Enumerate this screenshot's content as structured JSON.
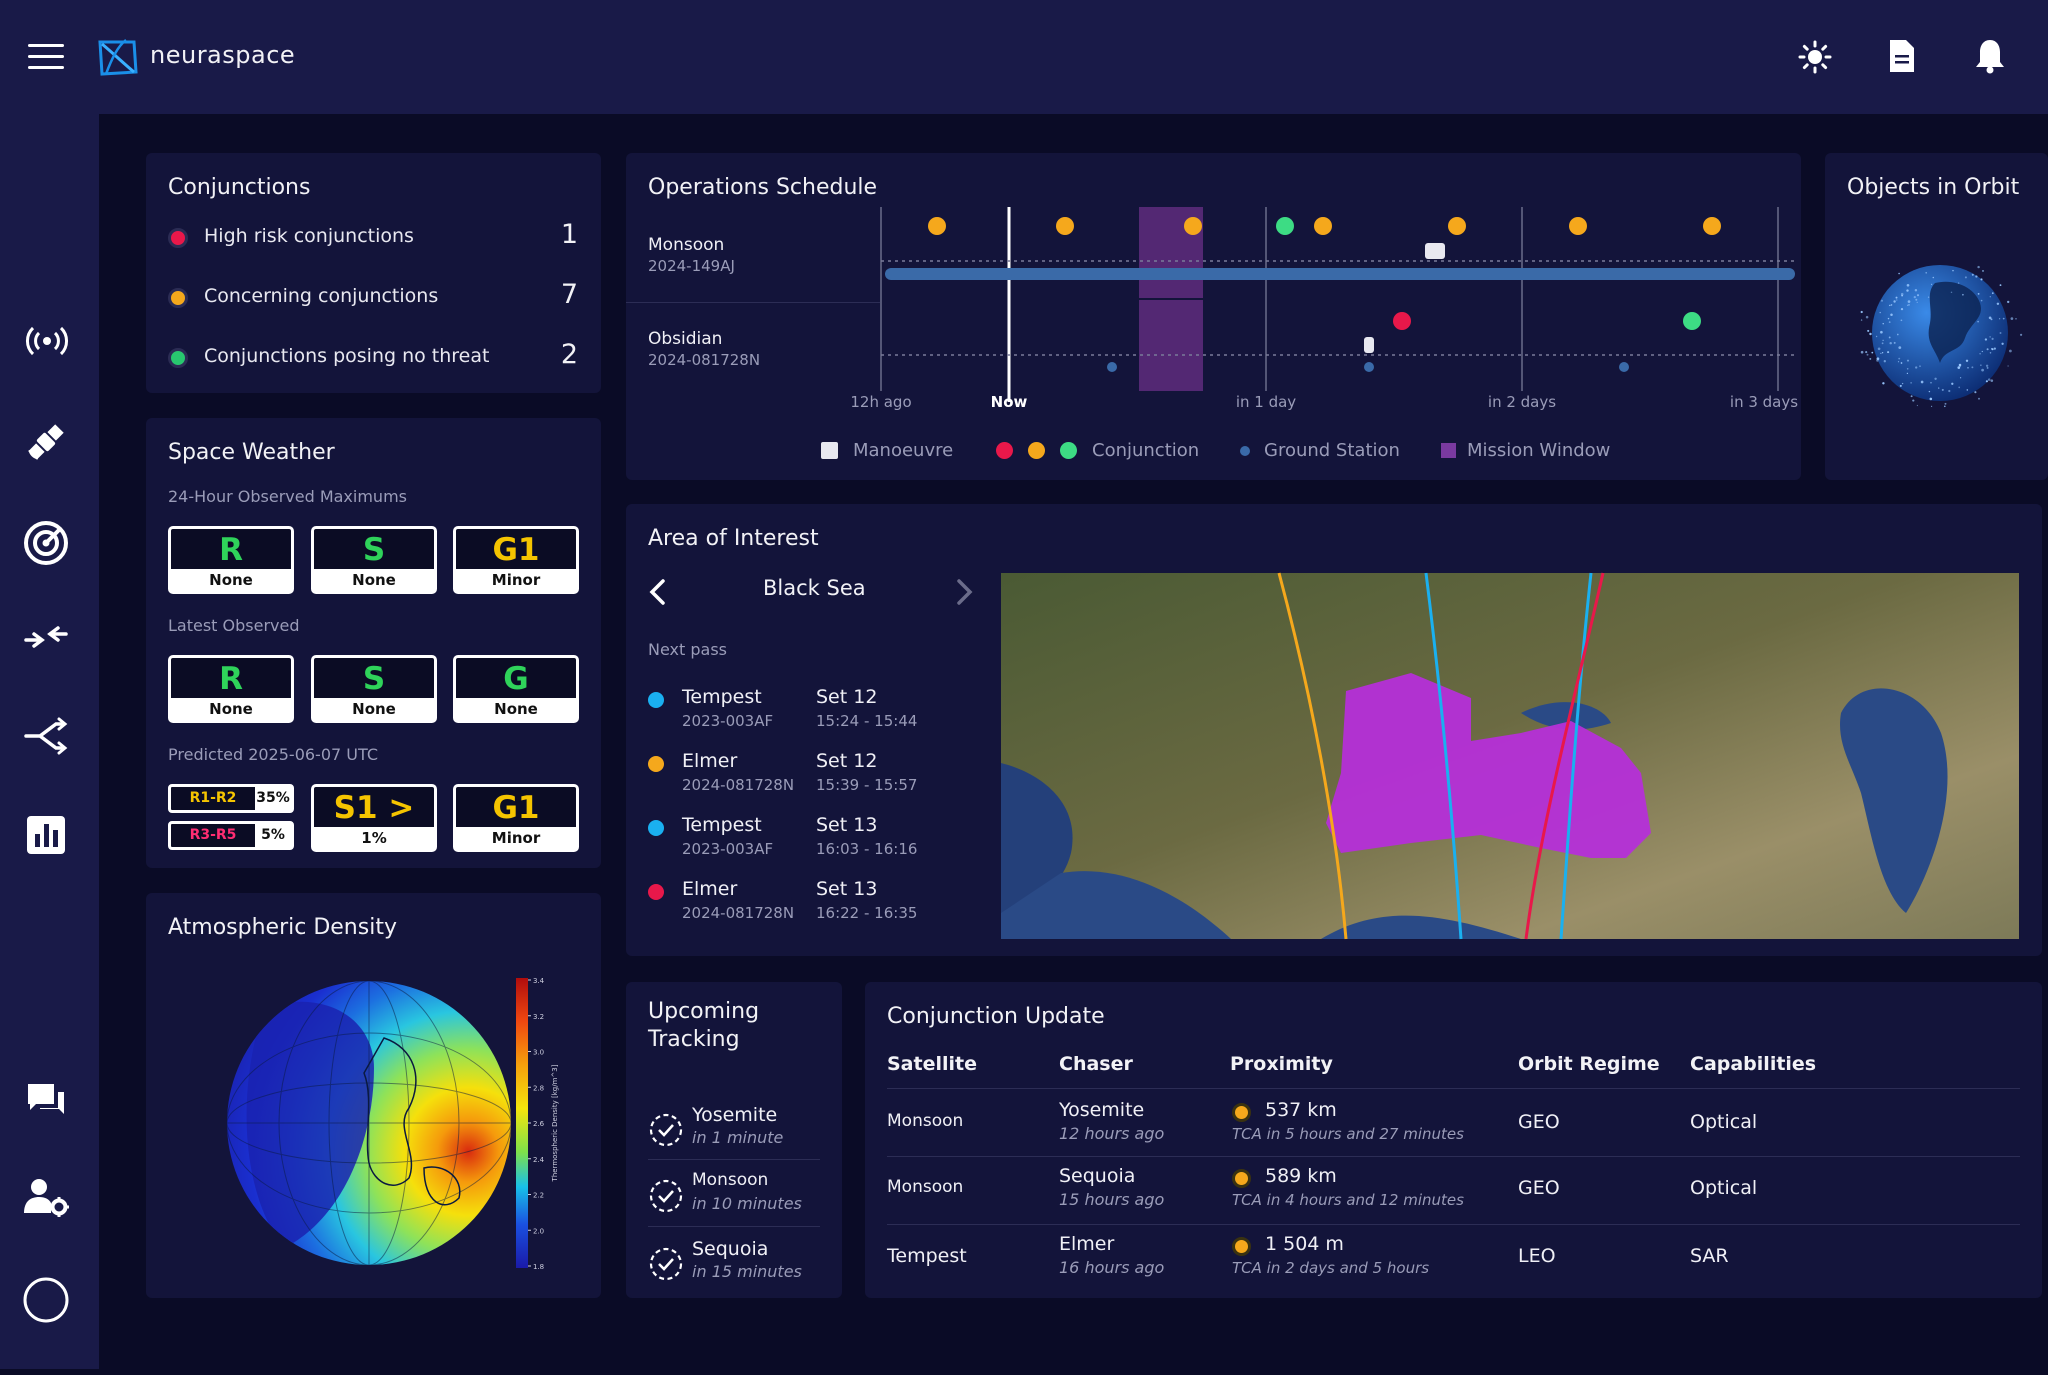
{
  "app": {
    "name": "neuraspace"
  },
  "header": {
    "icons": [
      "menu-icon",
      "sun-icon",
      "document-icon",
      "bell-icon"
    ]
  },
  "sidebar": {
    "icons": [
      "antenna-icon",
      "satellite-icon",
      "radar-icon",
      "merge-icon",
      "split-icon",
      "bar-chart-icon",
      "chat-icon",
      "user-settings-icon",
      "circle-icon"
    ]
  },
  "conjunctions": {
    "title": "Conjunctions",
    "rows": [
      {
        "label": "High risk conjunctions",
        "count": "1",
        "color": "#e8184a"
      },
      {
        "label": "Concerning conjunctions",
        "count": "7",
        "color": "#f5a81c"
      },
      {
        "label": "Conjunctions posing no threat",
        "count": "2",
        "color": "#28c76f"
      }
    ]
  },
  "weather": {
    "title": "Space Weather",
    "observed_max_label": "24-Hour Observed Maximums",
    "observed_max": [
      {
        "code": "R",
        "level": "None",
        "color": "#2fd35a"
      },
      {
        "code": "S",
        "level": "None",
        "color": "#2fd35a"
      },
      {
        "code": "G1",
        "level": "Minor",
        "color": "#f5c400"
      }
    ],
    "latest_label": "Latest Observed",
    "latest": [
      {
        "code": "R",
        "level": "None",
        "color": "#2fd35a"
      },
      {
        "code": "S",
        "level": "None",
        "color": "#2fd35a"
      },
      {
        "code": "G",
        "level": "None",
        "color": "#2fd35a"
      }
    ],
    "predicted_label": "Predicted 2025-06-07 UTC",
    "predicted_r": [
      {
        "code": "R1-R2",
        "pct": "35%",
        "color": "#f5c400"
      },
      {
        "code": "R3-R5",
        "pct": "5%",
        "color": "#ff2d72"
      }
    ],
    "predicted_s": {
      "code": "S1 >",
      "level": "1%",
      "color": "#f5c400"
    },
    "predicted_g": {
      "code": "G1",
      "level": "Minor",
      "color": "#f5c400"
    }
  },
  "density": {
    "title": "Atmospheric Density",
    "colorbar_ticks": [
      "3.4",
      "3.2",
      "3.0",
      "2.8",
      "2.6",
      "2.4",
      "2.2",
      "2.0",
      "1.8"
    ],
    "colorbar_label": "Thermospheric Density [kg/m^3]"
  },
  "schedule": {
    "title": "Operations Schedule",
    "satellites": [
      {
        "name": "Monsoon",
        "id": "2024-149AJ"
      },
      {
        "name": "Obsidian",
        "id": "2024-081728N"
      }
    ],
    "time_labels": [
      "12h ago",
      "Now",
      "in 1 day",
      "in 2 days",
      "in 3 days"
    ],
    "legend": {
      "manoeuvre": "Manoeuvre",
      "conjunction": "Conjunction",
      "ground_station": "Ground Station",
      "mission_window": "Mission Window"
    },
    "colors": {
      "red": "#e8184a",
      "orange": "#f5a81c",
      "green": "#3ddc84",
      "track": "#3a6aa8",
      "window": "#5b2a7a",
      "ground": "#3a6aa8"
    }
  },
  "orbit": {
    "title": "Objects in Orbit"
  },
  "aoi": {
    "title": "Area of Interest",
    "region": "Black Sea",
    "next_pass_label": "Next pass",
    "passes": [
      {
        "name": "Tempest",
        "id": "2023-003AF",
        "date": "Set 12",
        "time": "15:24 - 15:44",
        "color": "#1ab0f0"
      },
      {
        "name": "Elmer",
        "id": "2024-081728N",
        "date": "Set 12",
        "time": "15:39 - 15:57",
        "color": "#f5a81c"
      },
      {
        "name": "Tempest",
        "id": "2023-003AF",
        "date": "Set 13",
        "time": "16:03 - 16:16",
        "color": "#1ab0f0"
      },
      {
        "name": "Elmer",
        "id": "2024-081728N",
        "date": "Set 13",
        "time": "16:22 - 16:35",
        "color": "#e8184a"
      }
    ]
  },
  "tracking": {
    "title_line1": "Upcoming",
    "title_line2": "Tracking",
    "items": [
      {
        "name": "Yosemite",
        "time": "in 1 minute"
      },
      {
        "name": "Monsoon",
        "time": "in 10 minutes"
      },
      {
        "name": "Sequoia",
        "time": "in 15 minutes"
      }
    ]
  },
  "update": {
    "title": "Conjunction Update",
    "headers": [
      "Satellite",
      "Chaser",
      "Proximity",
      "Orbit Regime",
      "Capabilities"
    ],
    "rows": [
      {
        "satellite": "Monsoon",
        "chaser": "Yosemite",
        "chaser_time": "12 hours ago",
        "proximity": "537 km",
        "tca": "TCA in 5 hours and 27 minutes",
        "regime": "GEO",
        "capability": "Optical"
      },
      {
        "satellite": "Monsoon",
        "chaser": "Sequoia",
        "chaser_time": "15 hours ago",
        "proximity": "589 km",
        "tca": "TCA in 4 hours and 12 minutes",
        "regime": "GEO",
        "capability": "Optical"
      },
      {
        "satellite": "Tempest",
        "chaser": "Elmer",
        "chaser_time": "16 hours ago",
        "proximity": "1 504 m",
        "tca": "TCA in 2 days and 5 hours",
        "regime": "LEO",
        "capability": "SAR"
      }
    ]
  }
}
